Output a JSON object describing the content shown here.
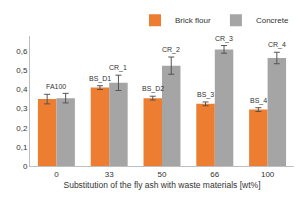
{
  "chart_data": {
    "type": "bar",
    "x_label": "Substitution of the fly ash with waste materials [wt%]",
    "categories": [
      "0",
      "33",
      "50",
      "66",
      "100"
    ],
    "series": [
      {
        "name": "Brick flour",
        "color": "#ed7d31",
        "values": [
          0.35,
          0.41,
          0.355,
          0.325,
          0.295
        ],
        "errors": [
          0.025,
          0.01,
          0.01,
          0.01,
          0.01
        ],
        "labels": [
          null,
          "BS_D1",
          "BS_D2",
          "BS_3",
          "BS_4"
        ]
      },
      {
        "name": "Concrete",
        "color": "#a5a5a5",
        "values": [
          0.355,
          0.435,
          0.525,
          0.61,
          0.565
        ],
        "errors": [
          0.025,
          0.04,
          0.045,
          0.02,
          0.03
        ],
        "labels": [
          null,
          "CR_1",
          "CR_2",
          "CR_3",
          "CR_4"
        ]
      }
    ],
    "annotations": [
      {
        "text": "FA100",
        "category": "0"
      }
    ],
    "ylim": [
      0,
      0.68
    ],
    "yticks": [
      0,
      {
        "value": 0.1,
        "label": "0,1"
      },
      {
        "value": 0.2,
        "label": "0,2"
      },
      {
        "value": 0.3,
        "label": "0,3"
      },
      {
        "value": 0.4,
        "label": "0,4"
      },
      {
        "value": 0.5,
        "label": "0,5"
      },
      {
        "value": 0.6,
        "label": "0,6"
      }
    ],
    "grid": false,
    "legend": "top"
  }
}
